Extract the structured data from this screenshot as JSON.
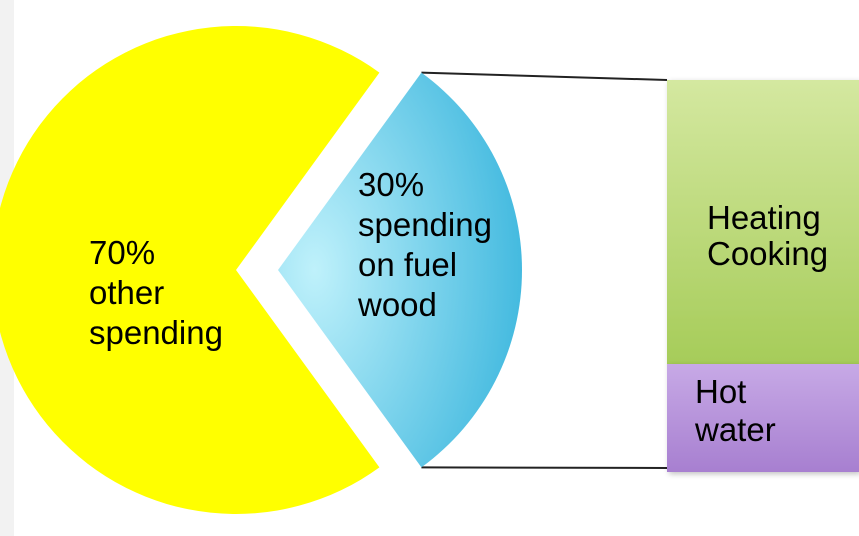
{
  "chart_data": {
    "type": "pie",
    "slices": [
      {
        "value": 70,
        "label_lines": [
          "70%",
          "other",
          "spending"
        ],
        "color": "#ffff00"
      },
      {
        "value": 30,
        "label_lines": [
          "30%",
          "spending",
          "on fuel",
          "wood"
        ],
        "color": "#5ccbe8"
      }
    ],
    "breakdown_bar": {
      "of_slice": "30% spending on fuel wood",
      "segments": [
        {
          "label_lines": [
            "Heating",
            "Cooking"
          ],
          "color": "#b6d56c"
        },
        {
          "label_lines": [
            "Hot",
            "water"
          ],
          "color": "#b48ed9"
        }
      ]
    }
  }
}
